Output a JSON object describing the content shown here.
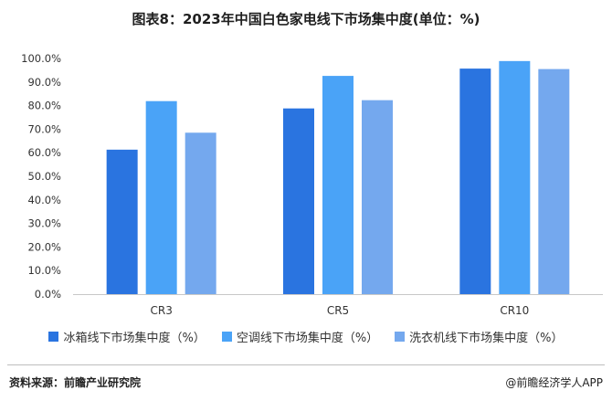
{
  "header": {
    "title": "图表8：2023年中国白色家电线下市场集中度(单位：%)"
  },
  "chart_data": {
    "type": "bar",
    "categories": [
      "CR3",
      "CR5",
      "CR10"
    ],
    "series": [
      {
        "name": "冰箱线下市场集中度（%）",
        "color": "#2a74e0",
        "values": [
          61.3,
          78.8,
          95.7
        ]
      },
      {
        "name": "空调线下市场集中度（%）",
        "color": "#4aa3f7",
        "values": [
          81.9,
          92.6,
          98.9
        ]
      },
      {
        "name": "洗衣机线下市场集中度（%）",
        "color": "#74a8ee",
        "values": [
          68.5,
          82.3,
          95.5
        ]
      }
    ],
    "ylim": [
      0,
      100
    ],
    "yticks": [
      "0.0%",
      "10.0%",
      "20.0%",
      "30.0%",
      "40.0%",
      "50.0%",
      "60.0%",
      "70.0%",
      "80.0%",
      "90.0%",
      "100.0%"
    ],
    "legend_position": "bottom",
    "grid": false
  },
  "footer": {
    "source": "资料来源：前瞻产业研究院",
    "credit": "@前瞻经济学人APP"
  }
}
